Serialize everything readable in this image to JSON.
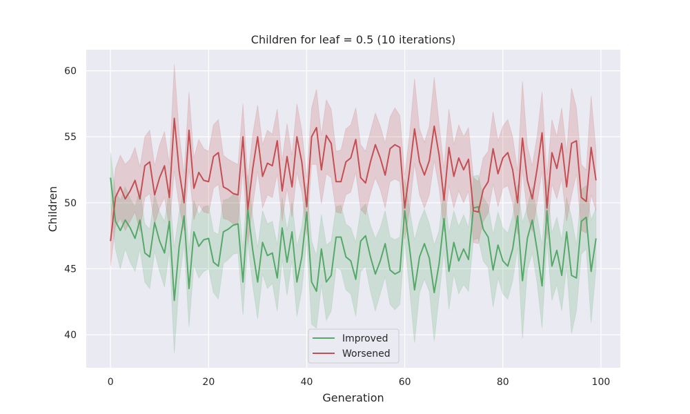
{
  "chart_data": {
    "type": "line",
    "title": "Children for leaf = 0.5 (10 iterations)",
    "xlabel": "Generation",
    "ylabel": "Children",
    "xlim": [
      -4.95,
      103.95
    ],
    "ylim": [
      37.5,
      61.6
    ],
    "xticks": [
      0,
      20,
      40,
      60,
      80,
      100
    ],
    "yticks": [
      40,
      45,
      50,
      55,
      60
    ],
    "grid": true,
    "legend_position": "lower center",
    "x": [
      0,
      1,
      2,
      3,
      4,
      5,
      6,
      7,
      8,
      9,
      10,
      11,
      12,
      13,
      14,
      15,
      16,
      17,
      18,
      19,
      20,
      21,
      22,
      23,
      24,
      25,
      26,
      27,
      28,
      29,
      30,
      31,
      32,
      33,
      34,
      35,
      36,
      37,
      38,
      39,
      40,
      41,
      42,
      43,
      44,
      45,
      46,
      47,
      48,
      49,
      50,
      51,
      52,
      53,
      54,
      55,
      56,
      57,
      58,
      59,
      60,
      61,
      62,
      63,
      64,
      65,
      66,
      67,
      68,
      69,
      70,
      71,
      72,
      73,
      74,
      75,
      76,
      77,
      78,
      79,
      80,
      81,
      82,
      83,
      84,
      85,
      86,
      87,
      88,
      89,
      90,
      91,
      92,
      93,
      94,
      95,
      96,
      97,
      98,
      99
    ],
    "series": [
      {
        "name": "Improved",
        "color": "#55a868",
        "values": [
          51.9,
          48.6,
          47.9,
          48.7,
          48.1,
          47.3,
          48.7,
          46.2,
          45.9,
          48.5,
          47.1,
          46.2,
          48.6,
          42.6,
          46.7,
          49.0,
          43.5,
          47.8,
          46.7,
          47.2,
          47.3,
          45.5,
          45.2,
          47.8,
          48.0,
          48.3,
          48.4,
          44.0,
          49.5,
          46.4,
          44.0,
          47.0,
          46.0,
          46.2,
          44.3,
          48.1,
          45.5,
          47.8,
          44.0,
          45.9,
          49.3,
          44.0,
          43.3,
          46.5,
          44.0,
          44.5,
          47.4,
          47.4,
          45.9,
          45.6,
          44.2,
          47.1,
          47.5,
          45.9,
          44.6,
          45.6,
          46.9,
          44.9,
          44.6,
          44.8,
          49.4,
          46.5,
          43.4,
          45.9,
          46.9,
          45.8,
          43.2,
          45.4,
          48.8,
          44.8,
          47.0,
          45.6,
          46.5,
          45.7,
          49.6,
          49.7,
          48.0,
          47.4,
          44.9,
          46.8,
          45.6,
          45.2,
          46.5,
          49.0,
          44.1,
          47.3,
          48.7,
          46.4,
          43.7,
          49.4,
          45.2,
          46.4,
          44.5,
          47.8,
          44.5,
          44.3,
          48.6,
          48.9,
          44.8,
          47.3
        ],
        "ci_lower": [
          49.7,
          46.5,
          45.0,
          46.5,
          45.5,
          44.8,
          46.5,
          44.0,
          43.5,
          46.3,
          44.8,
          43.6,
          46.4,
          38.6,
          44.0,
          46.9,
          40.6,
          45.3,
          44.3,
          44.8,
          45.0,
          43.2,
          42.7,
          45.4,
          45.7,
          46.1,
          46.2,
          41.5,
          47.0,
          43.7,
          41.2,
          44.6,
          43.5,
          43.9,
          41.8,
          45.7,
          43.0,
          45.6,
          41.4,
          43.4,
          47.1,
          40.8,
          40.5,
          43.8,
          41.1,
          41.8,
          45.1,
          44.9,
          43.4,
          43.1,
          41.4,
          44.8,
          45.2,
          43.3,
          41.8,
          43.1,
          44.4,
          42.3,
          41.9,
          42.3,
          47.1,
          43.4,
          39.4,
          43.2,
          44.2,
          43.3,
          39.5,
          42.9,
          46.4,
          41.9,
          44.6,
          43.1,
          43.8,
          43.3,
          47.2,
          47.3,
          45.6,
          45.1,
          42.1,
          44.3,
          43.1,
          42.7,
          44.1,
          46.6,
          39.7,
          44.9,
          46.2,
          43.9,
          40.5,
          47.0,
          42.6,
          43.8,
          41.8,
          45.2,
          40.1,
          41.8,
          46.1,
          46.5,
          40.9,
          45.0
        ],
        "ci_upper": [
          53.8,
          50.8,
          50.2,
          51.2,
          50.3,
          49.7,
          51.0,
          48.4,
          48.0,
          50.6,
          49.3,
          48.6,
          51.0,
          46.6,
          49.3,
          51.1,
          46.4,
          50.2,
          49.1,
          49.7,
          49.8,
          47.8,
          47.6,
          50.2,
          50.3,
          50.6,
          50.6,
          46.5,
          52.1,
          49.0,
          46.6,
          49.4,
          48.4,
          48.6,
          46.8,
          50.4,
          47.9,
          50.1,
          46.7,
          48.2,
          51.5,
          47.1,
          46.0,
          49.1,
          46.8,
          47.1,
          49.7,
          49.8,
          48.4,
          48.1,
          47.0,
          49.5,
          49.9,
          48.3,
          47.3,
          48.1,
          49.4,
          47.4,
          47.2,
          47.4,
          51.8,
          49.5,
          47.2,
          48.6,
          49.5,
          48.4,
          46.8,
          47.9,
          51.2,
          47.7,
          49.4,
          48.2,
          49.1,
          48.1,
          52.0,
          52.1,
          50.4,
          49.8,
          47.6,
          49.3,
          48.1,
          47.7,
          49.0,
          51.4,
          48.5,
          49.7,
          51.2,
          49.0,
          46.8,
          51.8,
          47.7,
          48.9,
          47.2,
          50.4,
          48.9,
          46.8,
          51.0,
          51.3,
          48.7,
          49.6
        ]
      },
      {
        "name": "Worsened",
        "color": "#c44e52",
        "values": [
          47.1,
          50.4,
          51.2,
          50.3,
          50.9,
          51.7,
          50.3,
          52.8,
          53.1,
          50.6,
          51.9,
          52.8,
          50.4,
          56.4,
          52.4,
          50.0,
          55.5,
          51.1,
          52.3,
          51.7,
          51.6,
          53.5,
          53.8,
          51.2,
          51.0,
          50.7,
          50.6,
          55.0,
          49.5,
          52.6,
          55.0,
          52.0,
          53.0,
          52.8,
          54.7,
          50.9,
          53.5,
          51.2,
          55.0,
          53.1,
          49.7,
          55.0,
          55.7,
          52.5,
          55.1,
          54.5,
          51.6,
          51.6,
          53.1,
          53.4,
          54.8,
          51.9,
          51.5,
          53.1,
          54.4,
          53.4,
          52.1,
          54.1,
          54.4,
          54.2,
          49.6,
          52.5,
          55.6,
          53.1,
          52.1,
          53.2,
          55.8,
          53.6,
          50.2,
          54.2,
          52.0,
          53.4,
          52.5,
          53.3,
          49.4,
          49.3,
          51.0,
          51.6,
          54.1,
          52.2,
          53.4,
          53.8,
          52.5,
          50.0,
          54.9,
          51.7,
          50.3,
          52.6,
          55.3,
          49.6,
          53.8,
          52.6,
          54.5,
          51.2,
          54.5,
          54.7,
          50.4,
          50.1,
          54.2,
          51.7
        ],
        "ci_lower": [
          45.2,
          48.2,
          48.8,
          47.9,
          48.6,
          49.3,
          47.8,
          50.4,
          50.7,
          48.4,
          49.6,
          50.4,
          48.1,
          52.4,
          49.7,
          47.9,
          52.6,
          48.7,
          49.9,
          49.3,
          49.2,
          51.1,
          51.4,
          48.8,
          48.7,
          48.4,
          48.4,
          52.5,
          46.9,
          49.8,
          52.4,
          49.6,
          50.6,
          50.4,
          52.2,
          48.6,
          51.1,
          48.9,
          52.3,
          50.8,
          47.5,
          52.9,
          52.9,
          49.9,
          52.2,
          51.9,
          49.3,
          49.2,
          50.6,
          50.8,
          52.3,
          49.5,
          49.1,
          50.7,
          51.9,
          51.0,
          49.6,
          51.6,
          51.8,
          51.6,
          47.2,
          49.5,
          53.0,
          50.6,
          49.6,
          50.6,
          53.2,
          51.1,
          47.8,
          51.3,
          49.6,
          50.9,
          50.0,
          50.9,
          47.0,
          46.9,
          48.6,
          49.2,
          51.4,
          49.7,
          51.1,
          51.3,
          50.0,
          47.6,
          52.5,
          49.1,
          47.8,
          50.0,
          52.4,
          47.2,
          51.4,
          50.3,
          51.8,
          48.6,
          50.5,
          52.2,
          47.9,
          47.7,
          50.6,
          49.4
        ],
        "ci_upper": [
          49.0,
          52.6,
          53.6,
          52.9,
          53.3,
          54.2,
          52.7,
          55.0,
          55.5,
          52.8,
          54.4,
          55.4,
          52.9,
          60.5,
          55.2,
          52.2,
          58.4,
          53.4,
          54.8,
          54.1,
          53.9,
          55.9,
          56.3,
          53.6,
          53.3,
          53.1,
          52.9,
          57.5,
          51.8,
          55.2,
          57.4,
          54.4,
          55.5,
          55.2,
          57.1,
          53.2,
          56.0,
          53.6,
          57.5,
          55.5,
          51.9,
          57.2,
          58.6,
          55.1,
          57.8,
          57.1,
          53.9,
          54.0,
          55.6,
          55.9,
          57.2,
          54.4,
          53.9,
          55.4,
          56.8,
          55.8,
          54.5,
          56.5,
          57.2,
          56.6,
          52.1,
          55.2,
          59.4,
          55.6,
          54.6,
          55.8,
          59.5,
          56.0,
          52.6,
          57.1,
          54.4,
          55.9,
          55.0,
          55.7,
          51.9,
          51.6,
          53.4,
          53.9,
          56.9,
          54.7,
          55.8,
          56.3,
          55.0,
          52.4,
          59.2,
          54.3,
          52.8,
          55.1,
          58.4,
          52.1,
          56.3,
          55.0,
          57.2,
          53.8,
          58.7,
          57.2,
          52.9,
          52.5,
          58.1,
          54.0
        ]
      }
    ]
  }
}
